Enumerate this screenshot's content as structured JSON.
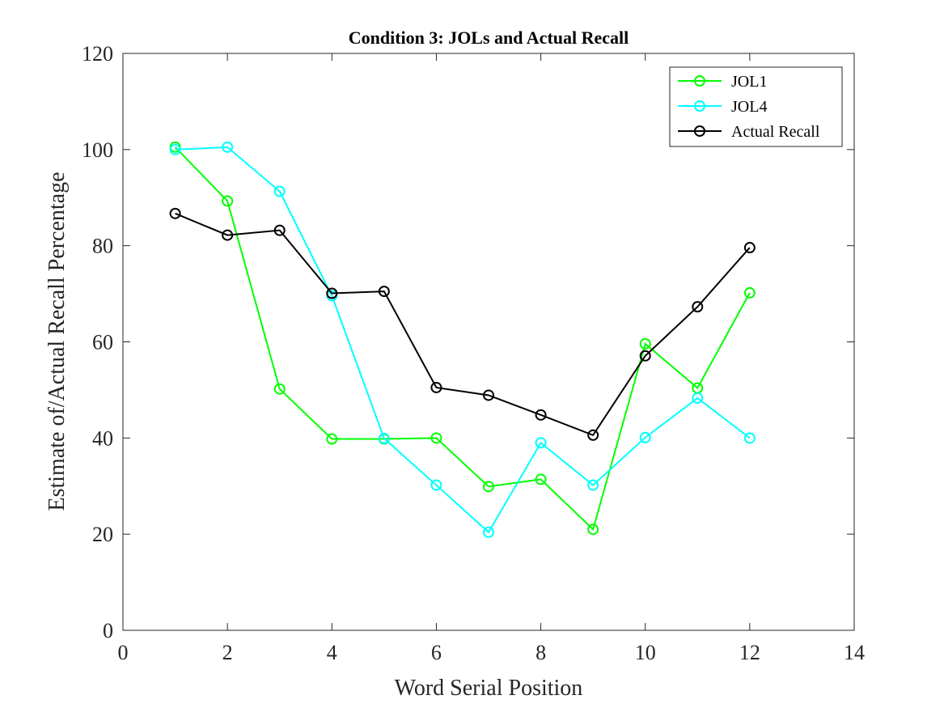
{
  "chart_data": {
    "type": "line",
    "title": "Condition 3: JOLs and Actual Recall",
    "xlabel": "Word Serial Position",
    "ylabel": "Estimate of/Actual Recall Percentage",
    "xlim": [
      0,
      14
    ],
    "ylim": [
      0,
      120
    ],
    "xticks": [
      0,
      2,
      4,
      6,
      8,
      10,
      12,
      14
    ],
    "yticks": [
      0,
      20,
      40,
      60,
      80,
      100,
      120
    ],
    "grid": false,
    "legend_position": "top-right",
    "x": [
      1,
      2,
      3,
      4,
      5,
      6,
      7,
      8,
      9,
      10,
      11,
      12
    ],
    "series": [
      {
        "name": "JOL1",
        "color": "#00ff00",
        "marker": "circle",
        "values": [
          100.5,
          89.3,
          50.2,
          39.8,
          39.8,
          40.0,
          29.9,
          31.4,
          21.0,
          59.6,
          50.4,
          70.2
        ]
      },
      {
        "name": "JOL4",
        "color": "#00ffff",
        "marker": "circle",
        "values": [
          100.0,
          100.5,
          91.3,
          69.6,
          39.9,
          30.2,
          20.4,
          39.0,
          30.2,
          40.1,
          48.3,
          40.0
        ]
      },
      {
        "name": "Actual Recall",
        "color": "#000000",
        "marker": "circle",
        "values": [
          86.7,
          82.2,
          83.2,
          70.1,
          70.5,
          50.5,
          48.9,
          44.8,
          40.6,
          57.1,
          67.3,
          79.6
        ]
      }
    ]
  }
}
